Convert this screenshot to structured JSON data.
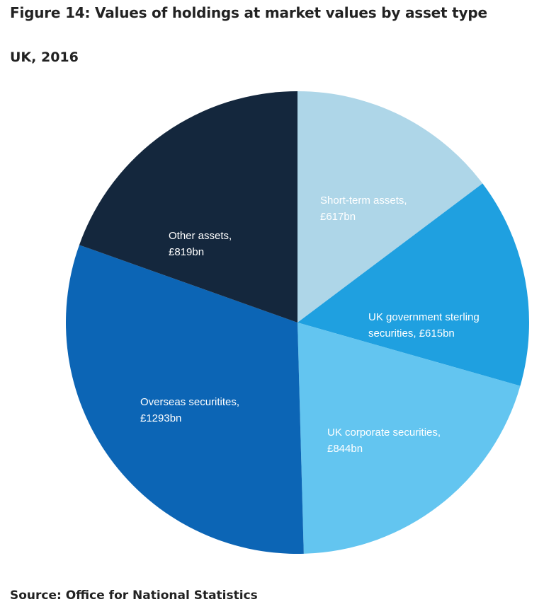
{
  "chart_data": {
    "type": "pie",
    "title": "Figure 14: Values of holdings at market values by asset type",
    "subtitle": "UK, 2016",
    "source": "Source: Office for National Statistics",
    "categories": [
      "Short-term assets,",
      "UK government sterling securities,",
      "UK corporate securities,",
      "Overseas securitites,",
      "Other assets,"
    ],
    "values": [
      617,
      615,
      844,
      1293,
      819
    ],
    "value_labels": [
      "£617bn",
      "£615bn",
      "£844bn",
      "£1293bn",
      "£819bn"
    ],
    "colors": [
      "#aed6e8",
      "#1fa0e0",
      "#63c5f0",
      "#0c65b5",
      "#14273d"
    ]
  }
}
